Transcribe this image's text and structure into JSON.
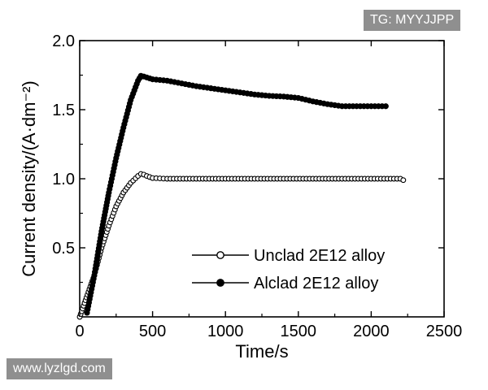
{
  "watermarks": {
    "top": "TG: MYYJJPP",
    "bottom": "www.lyzlgd.com"
  },
  "chart_data": {
    "type": "scatter",
    "title": "",
    "xlabel": "Time/s",
    "ylabel": "Current density/(A·dm⁻²)",
    "xlim": [
      0,
      2500
    ],
    "ylim": [
      0,
      2.0
    ],
    "x_ticks": [
      "0",
      "500",
      "1000",
      "1500",
      "2000",
      "2500"
    ],
    "y_ticks": [
      "0.5",
      "1.0",
      "1.5",
      "2.0"
    ],
    "grid": false,
    "legend_position": "bottom-right",
    "series": [
      {
        "name": "Unclad 2E12 alloy",
        "marker": "open-circle",
        "color": "#000000",
        "x": [
          0,
          20,
          40,
          60,
          80,
          100,
          150,
          200,
          250,
          300,
          350,
          400,
          420,
          440,
          460,
          500,
          600,
          800,
          1000,
          1200,
          1400,
          1600,
          1800,
          2000,
          2200,
          2220
        ],
        "y": [
          0.0,
          0.06,
          0.12,
          0.18,
          0.24,
          0.3,
          0.5,
          0.66,
          0.8,
          0.9,
          0.97,
          1.02,
          1.035,
          1.03,
          1.02,
          1.005,
          1.0,
          1.0,
          1.0,
          1.0,
          1.0,
          1.0,
          1.0,
          1.0,
          1.0,
          0.99
        ]
      },
      {
        "name": "Alclad 2E12 alloy",
        "marker": "filled-circle",
        "color": "#000000",
        "x": [
          50,
          100,
          150,
          200,
          250,
          300,
          350,
          400,
          420,
          440,
          500,
          600,
          700,
          800,
          900,
          1000,
          1100,
          1200,
          1300,
          1400,
          1500,
          1600,
          1700,
          1800,
          1900,
          2000,
          2100
        ],
        "y": [
          0.03,
          0.3,
          0.62,
          0.9,
          1.15,
          1.37,
          1.57,
          1.71,
          1.745,
          1.74,
          1.72,
          1.71,
          1.69,
          1.67,
          1.655,
          1.64,
          1.625,
          1.61,
          1.6,
          1.595,
          1.585,
          1.56,
          1.54,
          1.525,
          1.525,
          1.525,
          1.525
        ]
      }
    ]
  }
}
